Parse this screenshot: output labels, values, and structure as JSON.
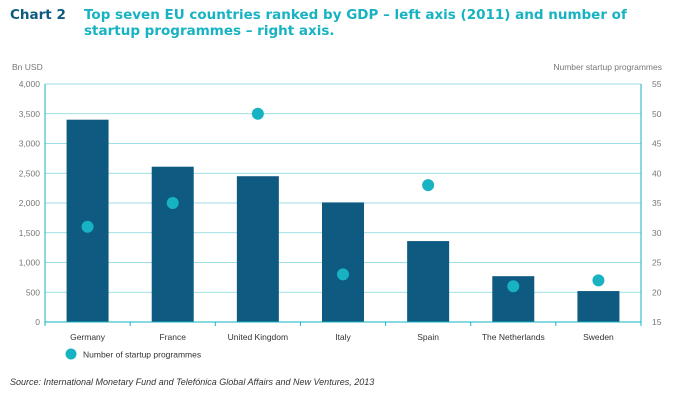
{
  "header": {
    "chart_number": "Chart 2",
    "title": "Top seven EU countries ranked by GDP – left axis (2011) and number of startup programmes – right axis."
  },
  "chart_data": {
    "type": "bar",
    "categories": [
      "Germany",
      "France",
      "United Kingdom",
      "Italy",
      "Spain",
      "The Netherlands",
      "Sweden"
    ],
    "series": [
      {
        "values": [
          3400,
          2610,
          2450,
          2010,
          1360,
          770,
          520
        ],
        "axis": "left",
        "mark": "bar",
        "color": "#0e5a80"
      },
      {
        "name": "Number of startup programmes",
        "values": [
          31,
          35,
          50,
          23,
          38,
          21,
          22
        ],
        "axis": "right",
        "mark": "dot",
        "color": "#17b3c2"
      }
    ],
    "ylabel_left": "Bn USD",
    "ylabel_right": "Number startup programmes",
    "ylim_left": [
      0,
      4000
    ],
    "ylim_right": [
      15,
      55
    ],
    "yticks_left": [
      "0",
      "500",
      "1,000",
      "1,500",
      "2,000",
      "2,500",
      "3,000",
      "3,500",
      "4,000"
    ],
    "yticks_right": [
      "15",
      "20",
      "25",
      "30",
      "35",
      "40",
      "45",
      "50",
      "55"
    ],
    "grid": true,
    "legend": {
      "label": "Number of startup programmes",
      "position": "bottom-left"
    },
    "colors": {
      "bar": "#0e5a80",
      "dot": "#17b3c2",
      "grid": "#7fd3dc",
      "axis": "#17b3c2"
    }
  },
  "source": "Source: International Monetary Fund and Telefónica Global Affairs and New Ventures, 2013"
}
